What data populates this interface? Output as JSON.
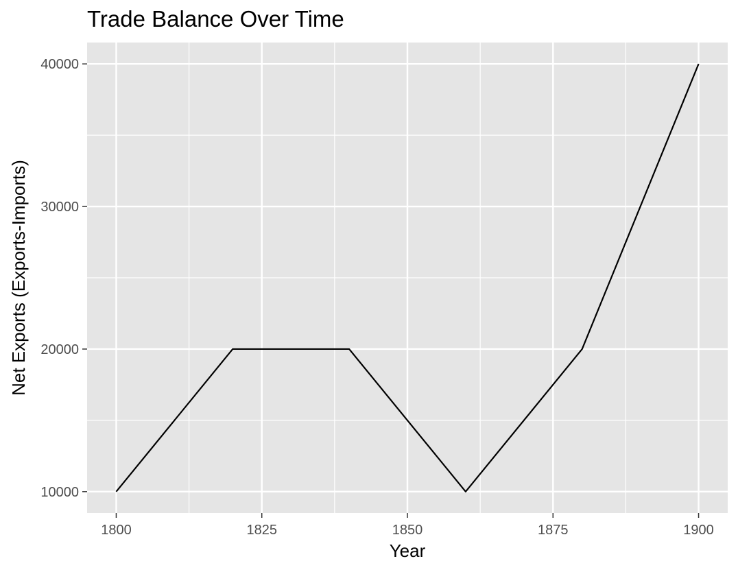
{
  "chart_data": {
    "type": "line",
    "title": "Trade Balance Over Time",
    "xlabel": "Year",
    "ylabel": "Net Exports (Exports-Imports)",
    "x": [
      1800,
      1820,
      1840,
      1860,
      1880,
      1900
    ],
    "series": [
      {
        "values": [
          10000,
          20000,
          20000,
          10000,
          20000,
          40000
        ]
      }
    ],
    "xlim": [
      1795,
      1905
    ],
    "ylim": [
      8500,
      41500
    ],
    "x_ticks": [
      1800,
      1825,
      1850,
      1875,
      1900
    ],
    "x_tick_labels": [
      "1800",
      "1825",
      "1850",
      "1875",
      "1900"
    ],
    "y_ticks": [
      10000,
      20000,
      30000,
      40000
    ],
    "y_tick_labels": [
      "10000",
      "20000",
      "30000",
      "40000"
    ],
    "grid": true,
    "line_color": "#000000",
    "panel_background": "#e5e5e5",
    "grid_color": "#ffffff"
  }
}
